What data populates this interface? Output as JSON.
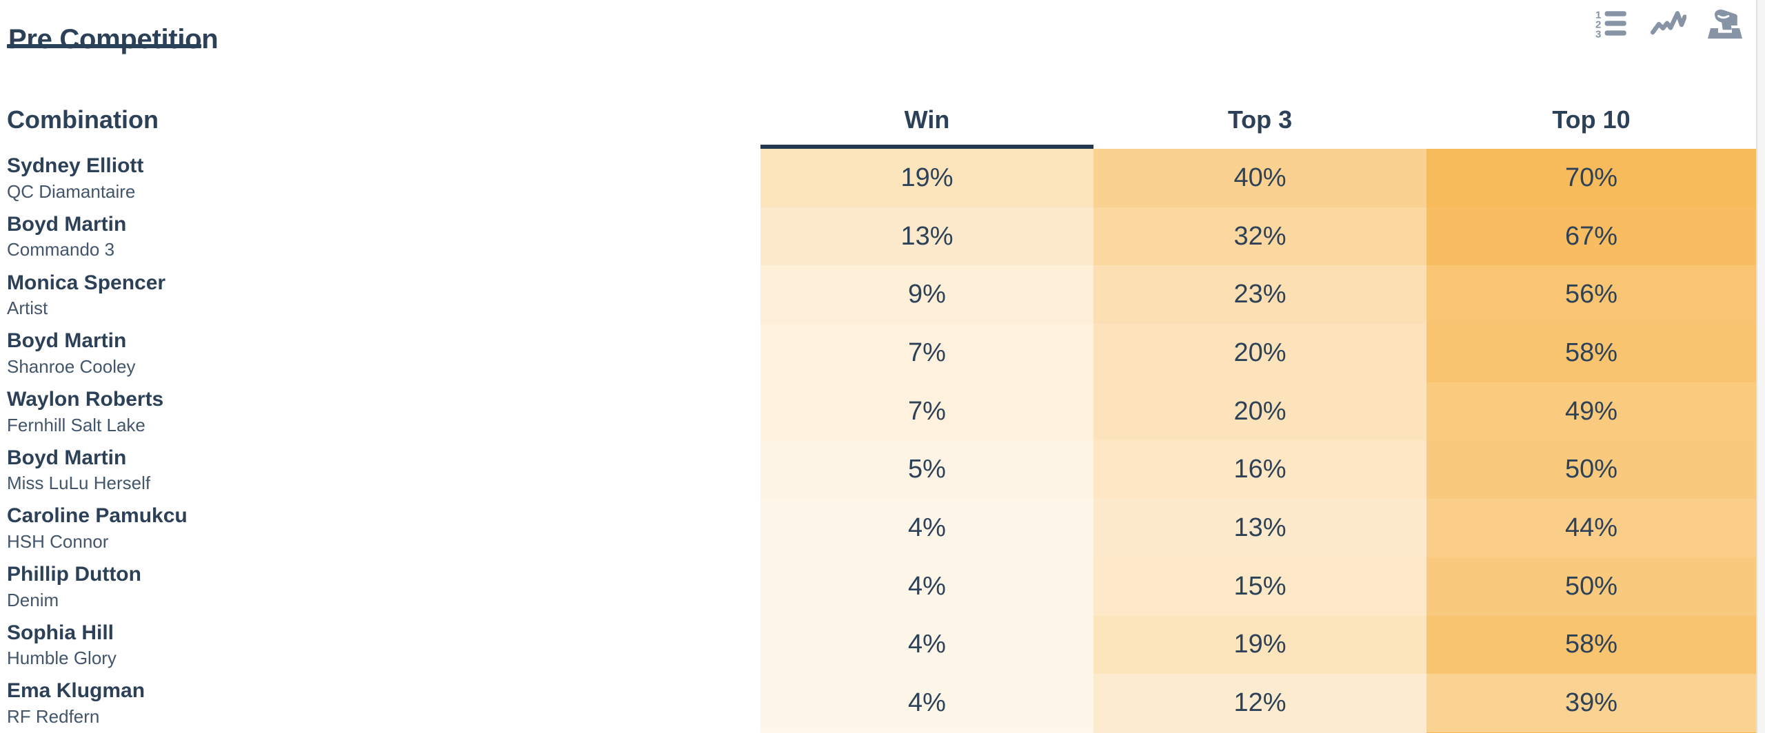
{
  "page": {
    "title": "Pre Competition"
  },
  "toolbar": {
    "icons": [
      {
        "name": "ranked-list-icon",
        "label": "Ranked list view"
      },
      {
        "name": "trend-chart-icon",
        "label": "Trend chart view"
      },
      {
        "name": "vote-icon",
        "label": "Vote view"
      }
    ]
  },
  "table": {
    "columns": [
      {
        "key": "combination",
        "label": "Combination",
        "align": "left",
        "sorted": false
      },
      {
        "key": "win",
        "label": "Win",
        "align": "center",
        "sorted": true
      },
      {
        "key": "top3",
        "label": "Top 3",
        "align": "center",
        "sorted": false
      },
      {
        "key": "top10",
        "label": "Top 10",
        "align": "center",
        "sorted": false
      }
    ],
    "value_suffix": "%",
    "rows": [
      {
        "rider": "Sydney Elliott",
        "horse": "QC Diamantaire",
        "win": 19,
        "top3": 40,
        "top10": 70
      },
      {
        "rider": "Boyd Martin",
        "horse": "Commando 3",
        "win": 13,
        "top3": 32,
        "top10": 67
      },
      {
        "rider": "Monica Spencer",
        "horse": "Artist",
        "win": 9,
        "top3": 23,
        "top10": 56
      },
      {
        "rider": "Boyd Martin",
        "horse": "Shanroe Cooley",
        "win": 7,
        "top3": 20,
        "top10": 58
      },
      {
        "rider": "Waylon Roberts",
        "horse": "Fernhill Salt Lake",
        "win": 7,
        "top3": 20,
        "top10": 49
      },
      {
        "rider": "Boyd Martin",
        "horse": "Miss LuLu Herself",
        "win": 5,
        "top3": 16,
        "top10": 50
      },
      {
        "rider": "Caroline Pamukcu",
        "horse": "HSH Connor",
        "win": 4,
        "top3": 13,
        "top10": 44
      },
      {
        "rider": "Phillip Dutton",
        "horse": "Denim",
        "win": 4,
        "top3": 15,
        "top10": 50
      },
      {
        "rider": "Sophia Hill",
        "horse": "Humble Glory",
        "win": 4,
        "top3": 19,
        "top10": 58
      },
      {
        "rider": "Ema Klugman",
        "horse": "RF Redfern",
        "win": 4,
        "top3": 12,
        "top10": 39
      }
    ],
    "partial_next_row_colors": {
      "win": "#FEF8EE",
      "top3": "#FBEACF",
      "top10": "#F7B654"
    }
  },
  "colors": {
    "heat_base": "#F6A82C",
    "heat_exponent": 0.7,
    "navy_text": "#2C4158",
    "horse_text": "#42556B",
    "icon_gray": "#8694A6",
    "sort_underline": "#233750",
    "title_underline": "#2B4158",
    "scrollbar_track": "#F5F5F5",
    "scrollbar_border": "#E0E0E0"
  }
}
